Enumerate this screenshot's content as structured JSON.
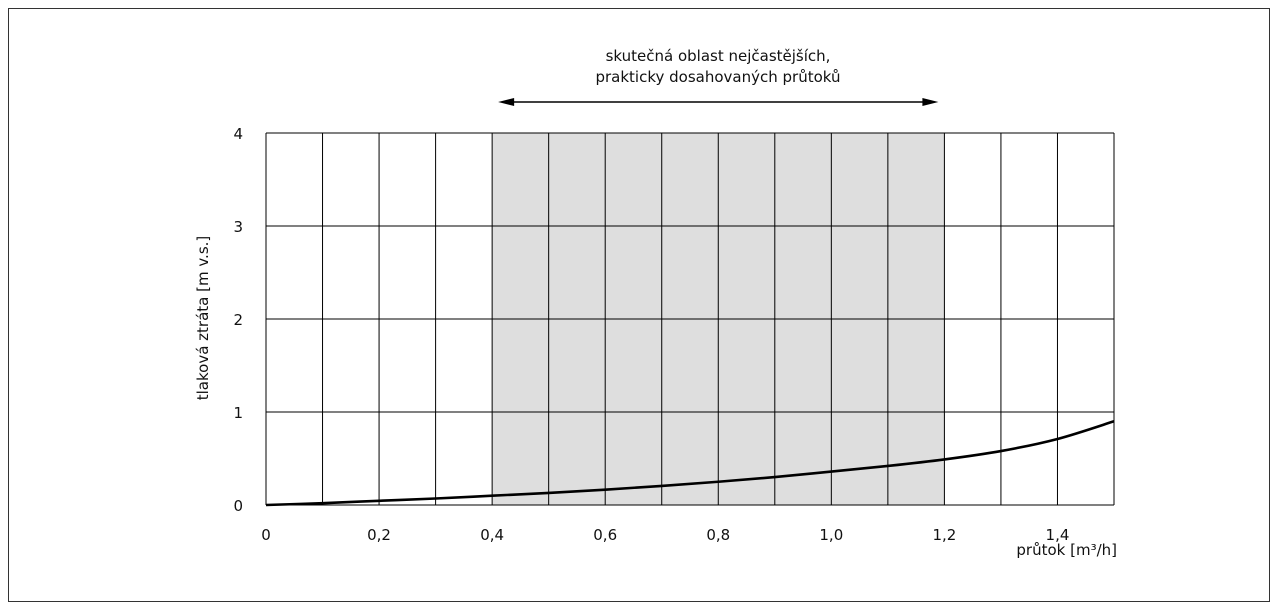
{
  "chart_data": {
    "type": "line",
    "xlabel": "průtok [m³/h]",
    "ylabel": "tlaková ztráta [m v.s.]",
    "xlim": [
      0,
      1.5
    ],
    "ylim": [
      0,
      4
    ],
    "x_ticks": [
      "0",
      "0,2",
      "0,4",
      "0,6",
      "0,8",
      "1,0",
      "1,2",
      "1,4"
    ],
    "y_ticks": [
      "0",
      "1",
      "2",
      "3",
      "4"
    ],
    "grid": true,
    "highlight_range": {
      "x_from": 0.4,
      "x_to": 1.2,
      "fill": "#dedede"
    },
    "annotation": {
      "line1": "skutečná oblast nejčastějších,",
      "line2": "prakticky dosahovaných průtoků"
    },
    "series": [
      {
        "x": [
          0,
          0.1,
          0.2,
          0.3,
          0.4,
          0.5,
          0.6,
          0.7,
          0.8,
          0.9,
          1.0,
          1.1,
          1.2,
          1.3,
          1.4,
          1.5
        ],
        "y": [
          0,
          0.02,
          0.045,
          0.07,
          0.1,
          0.13,
          0.165,
          0.205,
          0.25,
          0.3,
          0.36,
          0.42,
          0.49,
          0.58,
          0.71,
          0.9
        ]
      }
    ]
  },
  "colors": {
    "line": "#000000",
    "grid": "#000000",
    "highlight": "#dedede"
  }
}
